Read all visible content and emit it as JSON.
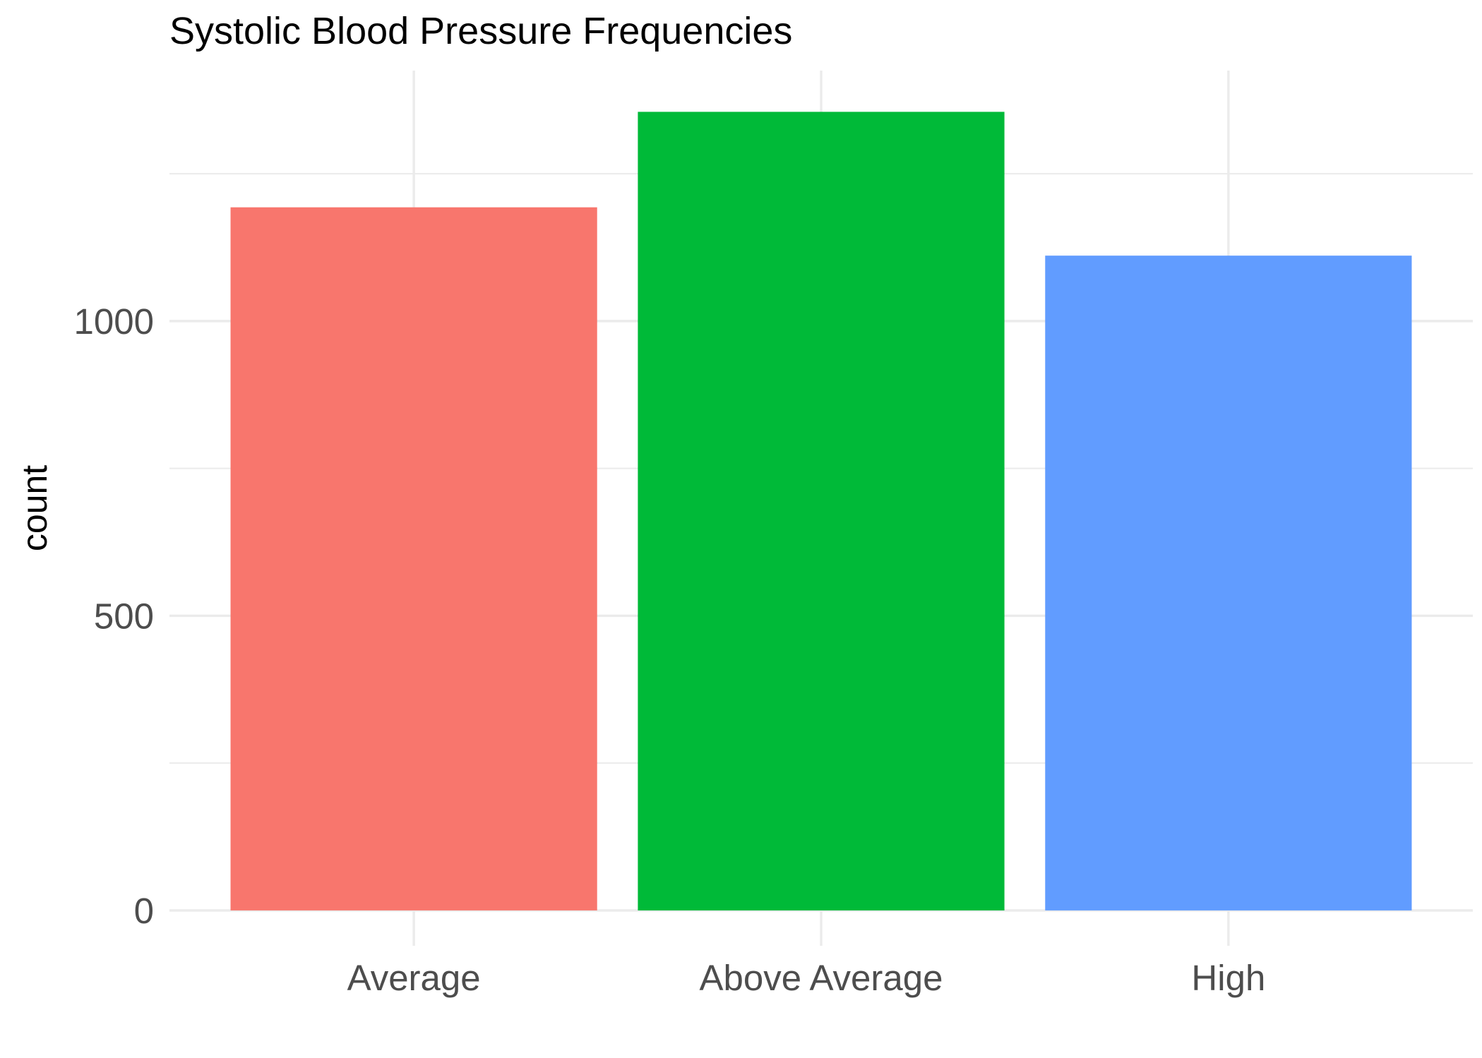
{
  "chart_data": {
    "type": "bar",
    "title": "Systolic Blood Pressure Frequencies",
    "xlabel": "",
    "ylabel": "count",
    "categories": [
      "Average",
      "Above Average",
      "High"
    ],
    "values": [
      1193,
      1355,
      1111
    ],
    "colors": [
      "#F8766D",
      "#00BA38",
      "#619CFF"
    ],
    "ylim": [
      -60,
      1425
    ],
    "yticks": [
      0,
      500,
      1000
    ],
    "yticks_minor": [
      250,
      750,
      1250
    ],
    "grid": true,
    "legend": "none"
  }
}
